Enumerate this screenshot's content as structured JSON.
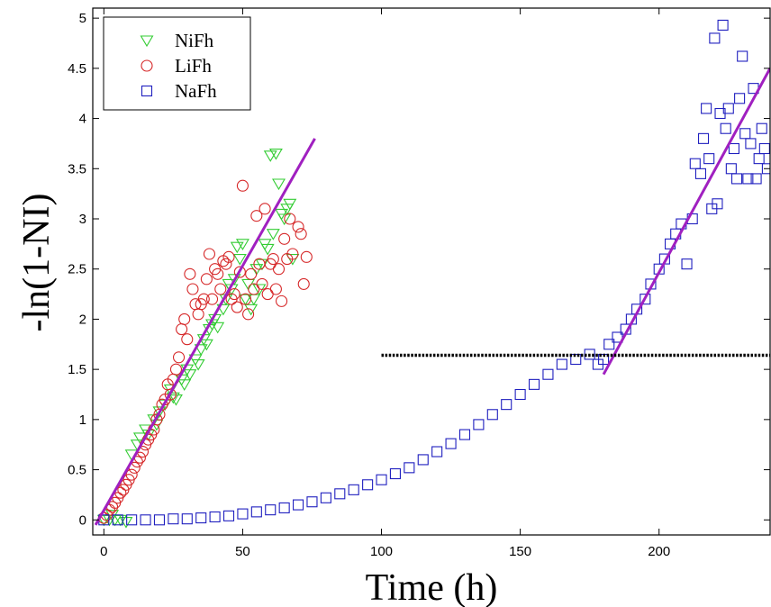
{
  "chart_data": {
    "type": "scatter",
    "xlabel": "Time (h)",
    "ylabel": "-ln(1-NI)",
    "xlim": [
      -4,
      240
    ],
    "ylim": [
      -0.15,
      5.1
    ],
    "xticks": [
      0,
      50,
      100,
      150,
      200
    ],
    "yticks": [
      0,
      0.5,
      1,
      1.5,
      2,
      2.5,
      3,
      3.5,
      4,
      4.5,
      5
    ],
    "xtick_labels": [
      "0",
      "50",
      "100",
      "150",
      "200"
    ],
    "ytick_labels": [
      "0",
      "0.5",
      "1",
      "1.5",
      "2",
      "2.5",
      "3",
      "3.5",
      "4",
      "4.5",
      "5"
    ],
    "grid": false,
    "legend_position": "top-left",
    "series": [
      {
        "name": "NiFh",
        "marker": "triangle-down",
        "color": "#33cc33",
        "points": [
          [
            0,
            0
          ],
          [
            2,
            0
          ],
          [
            4,
            0
          ],
          [
            6,
            0
          ],
          [
            8,
            -0.02
          ],
          [
            3,
            0.05
          ],
          [
            10,
            0.65
          ],
          [
            12,
            0.75
          ],
          [
            13,
            0.82
          ],
          [
            15,
            0.9
          ],
          [
            16,
            0.85
          ],
          [
            18,
            1.0
          ],
          [
            19,
            0.95
          ],
          [
            20,
            1.08
          ],
          [
            22,
            1.15
          ],
          [
            24,
            1.3
          ],
          [
            25,
            1.22
          ],
          [
            26,
            1.2
          ],
          [
            28,
            1.4
          ],
          [
            29,
            1.35
          ],
          [
            30,
            1.5
          ],
          [
            31,
            1.45
          ],
          [
            33,
            1.6
          ],
          [
            34,
            1.55
          ],
          [
            35,
            1.7
          ],
          [
            36,
            1.8
          ],
          [
            37,
            1.75
          ],
          [
            38,
            1.9
          ],
          [
            39,
            1.95
          ],
          [
            40,
            2.0
          ],
          [
            41,
            1.92
          ],
          [
            43,
            2.1
          ],
          [
            44,
            2.2
          ],
          [
            45,
            2.35
          ],
          [
            46,
            2.3
          ],
          [
            47,
            2.4
          ],
          [
            48,
            2.72
          ],
          [
            49,
            2.6
          ],
          [
            50,
            2.75
          ],
          [
            51,
            2.2
          ],
          [
            52,
            2.35
          ],
          [
            53,
            2.1
          ],
          [
            54,
            2.2
          ],
          [
            55,
            2.5
          ],
          [
            56,
            2.3
          ],
          [
            57,
            2.55
          ],
          [
            58,
            2.75
          ],
          [
            59,
            2.7
          ],
          [
            60,
            3.63
          ],
          [
            61,
            2.85
          ],
          [
            62,
            3.65
          ],
          [
            63,
            3.35
          ],
          [
            64,
            3.05
          ],
          [
            65,
            3.0
          ],
          [
            66,
            3.1
          ],
          [
            67,
            3.15
          ],
          [
            68,
            2.6
          ]
        ]
      },
      {
        "name": "LiFh",
        "marker": "circle",
        "color": "#d62728",
        "points": [
          [
            0,
            0.02
          ],
          [
            1,
            0.05
          ],
          [
            2,
            0.1
          ],
          [
            3,
            0.13
          ],
          [
            4,
            0.17
          ],
          [
            5,
            0.22
          ],
          [
            6,
            0.27
          ],
          [
            7,
            0.3
          ],
          [
            8,
            0.35
          ],
          [
            9,
            0.4
          ],
          [
            10,
            0.45
          ],
          [
            11,
            0.52
          ],
          [
            12,
            0.58
          ],
          [
            13,
            0.62
          ],
          [
            14,
            0.68
          ],
          [
            15,
            0.75
          ],
          [
            16,
            0.8
          ],
          [
            17,
            0.85
          ],
          [
            18,
            0.9
          ],
          [
            19,
            1.0
          ],
          [
            20,
            1.05
          ],
          [
            21,
            1.15
          ],
          [
            22,
            1.2
          ],
          [
            23,
            1.35
          ],
          [
            24,
            1.25
          ],
          [
            25,
            1.4
          ],
          [
            26,
            1.5
          ],
          [
            27,
            1.62
          ],
          [
            28,
            1.9
          ],
          [
            29,
            2.0
          ],
          [
            30,
            1.8
          ],
          [
            31,
            2.45
          ],
          [
            32,
            2.3
          ],
          [
            33,
            2.15
          ],
          [
            34,
            2.05
          ],
          [
            35,
            2.15
          ],
          [
            36,
            2.2
          ],
          [
            37,
            2.4
          ],
          [
            38,
            2.65
          ],
          [
            39,
            2.2
          ],
          [
            40,
            2.5
          ],
          [
            41,
            2.45
          ],
          [
            42,
            2.3
          ],
          [
            43,
            2.58
          ],
          [
            44,
            2.55
          ],
          [
            45,
            2.62
          ],
          [
            46,
            2.2
          ],
          [
            47,
            2.25
          ],
          [
            48,
            2.12
          ],
          [
            49,
            2.47
          ],
          [
            50,
            3.33
          ],
          [
            51,
            2.2
          ],
          [
            52,
            2.05
          ],
          [
            53,
            2.45
          ],
          [
            54,
            2.3
          ],
          [
            55,
            3.03
          ],
          [
            56,
            2.55
          ],
          [
            57,
            2.35
          ],
          [
            58,
            3.1
          ],
          [
            59,
            2.25
          ],
          [
            60,
            2.55
          ],
          [
            61,
            2.6
          ],
          [
            62,
            2.3
          ],
          [
            63,
            2.5
          ],
          [
            64,
            2.18
          ],
          [
            65,
            2.8
          ],
          [
            66,
            2.6
          ],
          [
            67,
            3.0
          ],
          [
            68,
            2.65
          ],
          [
            70,
            2.92
          ],
          [
            71,
            2.85
          ],
          [
            72,
            2.35
          ],
          [
            73,
            2.62
          ]
        ]
      },
      {
        "name": "NaFh",
        "marker": "square",
        "color": "#1f1fbf",
        "points": [
          [
            0,
            0.0
          ],
          [
            5,
            0.0
          ],
          [
            10,
            0.0
          ],
          [
            15,
            0.0
          ],
          [
            20,
            0.0
          ],
          [
            25,
            0.01
          ],
          [
            30,
            0.01
          ],
          [
            35,
            0.02
          ],
          [
            40,
            0.03
          ],
          [
            45,
            0.04
          ],
          [
            50,
            0.06
          ],
          [
            55,
            0.08
          ],
          [
            60,
            0.1
          ],
          [
            65,
            0.12
          ],
          [
            70,
            0.15
          ],
          [
            75,
            0.18
          ],
          [
            80,
            0.22
          ],
          [
            85,
            0.26
          ],
          [
            90,
            0.3
          ],
          [
            95,
            0.35
          ],
          [
            100,
            0.4
          ],
          [
            105,
            0.46
          ],
          [
            110,
            0.52
          ],
          [
            115,
            0.6
          ],
          [
            120,
            0.68
          ],
          [
            125,
            0.76
          ],
          [
            130,
            0.85
          ],
          [
            135,
            0.95
          ],
          [
            140,
            1.05
          ],
          [
            145,
            1.15
          ],
          [
            150,
            1.25
          ],
          [
            155,
            1.35
          ],
          [
            160,
            1.45
          ],
          [
            165,
            1.55
          ],
          [
            170,
            1.6
          ],
          [
            175,
            1.65
          ],
          [
            178,
            1.55
          ],
          [
            180,
            1.6
          ],
          [
            182,
            1.75
          ],
          [
            185,
            1.82
          ],
          [
            188,
            1.9
          ],
          [
            190,
            2.0
          ],
          [
            192,
            2.1
          ],
          [
            195,
            2.2
          ],
          [
            197,
            2.35
          ],
          [
            200,
            2.5
          ],
          [
            202,
            2.6
          ],
          [
            204,
            2.75
          ],
          [
            206,
            2.85
          ],
          [
            208,
            2.95
          ],
          [
            210,
            2.55
          ],
          [
            212,
            3.0
          ],
          [
            213,
            3.55
          ],
          [
            215,
            3.45
          ],
          [
            216,
            3.8
          ],
          [
            217,
            4.1
          ],
          [
            218,
            3.6
          ],
          [
            219,
            3.1
          ],
          [
            220,
            4.8
          ],
          [
            221,
            3.15
          ],
          [
            222,
            4.05
          ],
          [
            223,
            4.93
          ],
          [
            224,
            3.9
          ],
          [
            225,
            4.1
          ],
          [
            226,
            3.5
          ],
          [
            227,
            3.7
          ],
          [
            228,
            3.4
          ],
          [
            229,
            4.2
          ],
          [
            230,
            4.62
          ],
          [
            231,
            3.85
          ],
          [
            232,
            3.4
          ],
          [
            233,
            3.75
          ],
          [
            234,
            4.3
          ],
          [
            235,
            3.4
          ],
          [
            236,
            3.6
          ],
          [
            237,
            3.9
          ],
          [
            238,
            3.7
          ],
          [
            239,
            3.5
          ]
        ]
      }
    ],
    "lines": [
      {
        "color": "#a020c0",
        "style": "solid",
        "x": [
          -3,
          76
        ],
        "y": [
          -0.05,
          3.8
        ]
      },
      {
        "color": "#a020c0",
        "style": "solid",
        "x": [
          180,
          240
        ],
        "y": [
          1.45,
          4.5
        ]
      },
      {
        "color": "#000000",
        "style": "dotted",
        "x": [
          100,
          240
        ],
        "y": [
          1.64,
          1.64
        ]
      }
    ]
  }
}
